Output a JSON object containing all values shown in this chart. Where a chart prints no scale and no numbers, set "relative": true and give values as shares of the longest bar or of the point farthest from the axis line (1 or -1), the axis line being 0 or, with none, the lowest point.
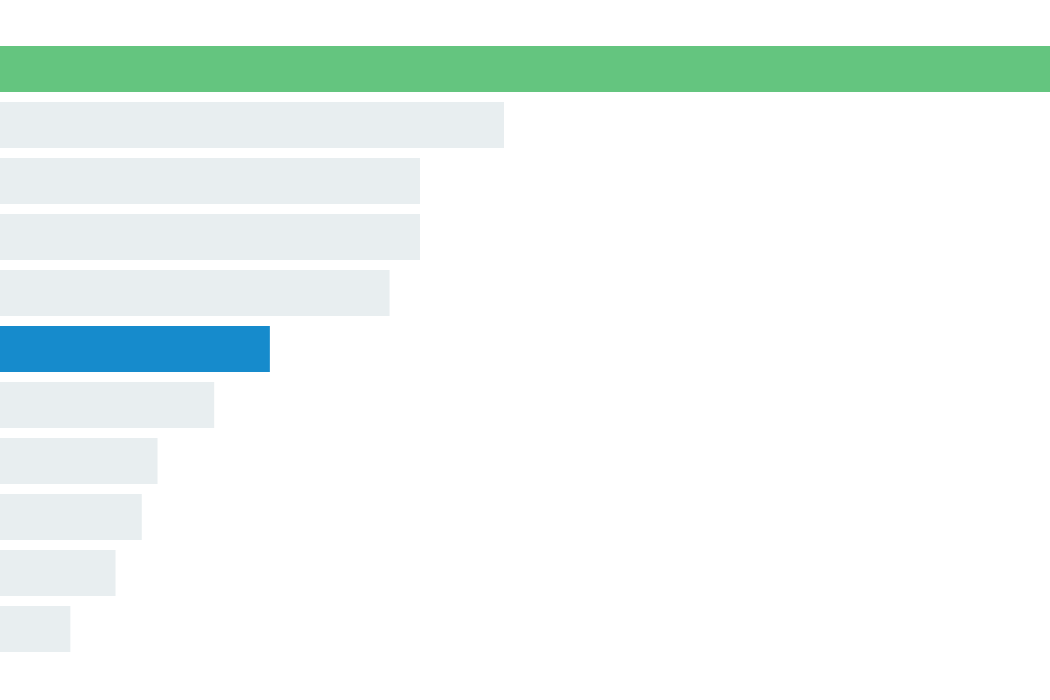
{
  "chart_data": {
    "type": "bar",
    "orientation": "horizontal",
    "relative": true,
    "categories": [
      null,
      null,
      null,
      null,
      null,
      null,
      null,
      null,
      null,
      null,
      null
    ],
    "values": [
      1,
      0.48,
      0.4,
      0.4,
      0.371,
      0.257,
      0.204,
      0.15,
      0.135,
      0.11,
      0.067
    ],
    "colors": [
      "#64c57f",
      "#e8eef0",
      "#e8eef0",
      "#e8eef0",
      "#e8eef0",
      "#168bcc",
      "#e8eef0",
      "#e8eef0",
      "#e8eef0",
      "#e8eef0",
      "#e8eef0"
    ]
  }
}
